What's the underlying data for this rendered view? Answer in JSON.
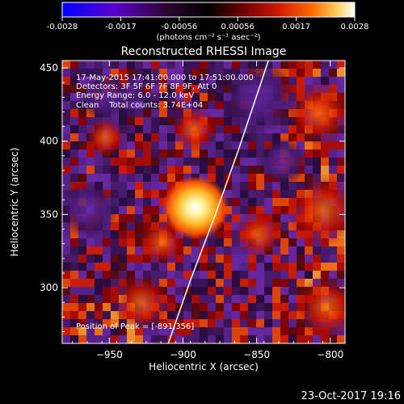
{
  "chart_data": {
    "type": "heatmap",
    "title": "Reconstructed RHESSI Image",
    "xlabel": "Heliocentric X (arcsec)",
    "ylabel": "Heliocentric Y (arcsec)",
    "xlim": [
      -982,
      -790
    ],
    "ylim": [
      262,
      455
    ],
    "x_ticks": [
      -950,
      -900,
      -850,
      -800
    ],
    "x_tick_labels": [
      "−950",
      "−900",
      "−850",
      "−800"
    ],
    "y_ticks": [
      300,
      350,
      400,
      450
    ],
    "y_tick_labels": [
      "300",
      "350",
      "400",
      "450"
    ],
    "annotations": [
      "17-May-2015 17:41:00.000 to 17:51:00.000",
      "Detectors: 3F 5F 6F 7F 8F 9F, Att 0",
      "Energy Range: 6.0 - 12.0 keV",
      "Clean    Total counts: 3.74E+04"
    ],
    "peak_label": "Position of Peak = [-891,356]",
    "peak": {
      "x": -891,
      "y": 356
    },
    "limb_curve": [
      [
        -910,
        262
      ],
      [
        -895,
        305
      ],
      [
        -878,
        350
      ],
      [
        -862,
        395
      ],
      [
        -842,
        455
      ]
    ],
    "colorbar": {
      "min": -0.0028,
      "max": 0.0028,
      "tick_labels": [
        "-0.0028",
        "-0.0017",
        "-0.00056",
        "0.00056",
        "0.0017",
        "0.0028"
      ],
      "unit_label": "(photons cm⁻² s⁻¹ asec⁻²)",
      "colors": [
        "#0000ff",
        "#5a00cc",
        "#3a0a44",
        "#000000",
        "#6a0000",
        "#cc1500",
        "#ff6a00",
        "#ffd060",
        "#ffffff"
      ]
    },
    "grid": false
  },
  "footer": {
    "date": "23-Oct-2017 19:16"
  }
}
